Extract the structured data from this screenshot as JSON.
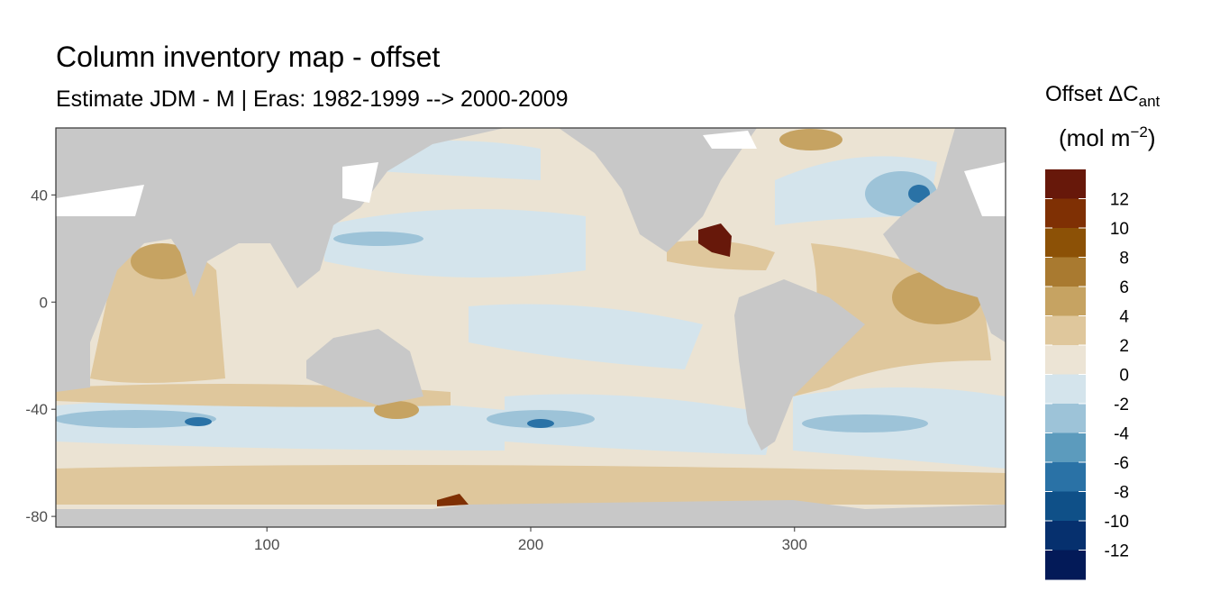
{
  "chart_data": {
    "type": "raster-map",
    "title": "Column inventory map - offset",
    "subtitle": "Estimate JDM - M | Eras: 1982-1999 --> 2000-2009",
    "xlim": [
      20,
      380
    ],
    "xticks": [
      100,
      200,
      300
    ],
    "ylim": [
      -84,
      65
    ],
    "yticks": [
      40,
      0,
      -40,
      -80
    ],
    "legend_title": "Offset ΔC",
    "legend_title_sub": "ant",
    "legend_unit": "(mol m",
    "legend_unit_sup": "−2",
    "legend_unit_end": ")",
    "legend_breaks": [
      12,
      10,
      8,
      6,
      4,
      2,
      0,
      -2,
      -4,
      -6,
      -8,
      -10,
      -12
    ],
    "legend_colors": [
      "#67180a",
      "#7f3004",
      "#8c5106",
      "#a97a30",
      "#c6a362",
      "#dfc79c",
      "#ece4d5",
      "#d4e4ec",
      "#9dc3d8",
      "#5c9bbd",
      "#2a72a6",
      "#0f5088",
      "#06306e",
      "#031a58"
    ],
    "land_color": "#c8c8c8"
  }
}
